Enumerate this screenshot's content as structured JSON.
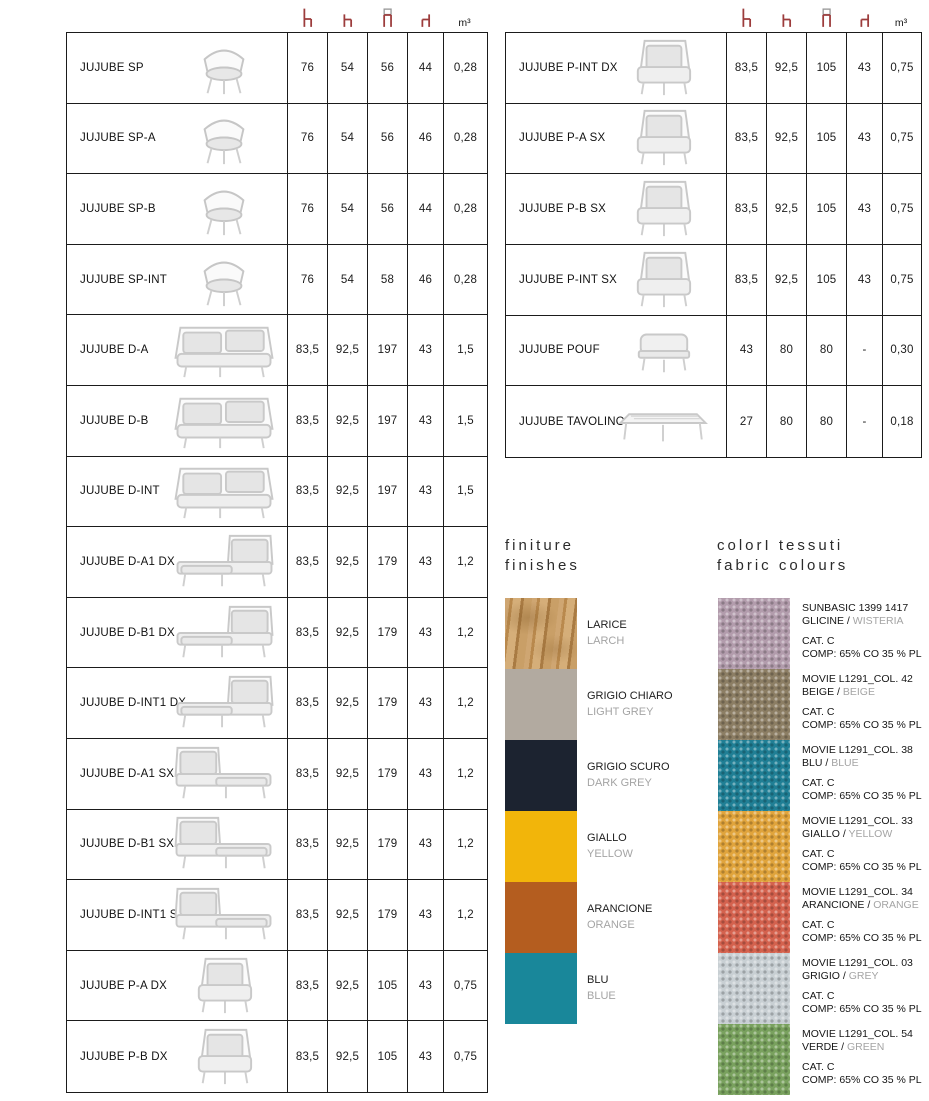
{
  "dim_header": {
    "icons": [
      {
        "name": "total-height-icon"
      },
      {
        "name": "depth-icon"
      },
      {
        "name": "width-icon"
      },
      {
        "name": "seat-height-icon"
      }
    ],
    "volume_label": "m³"
  },
  "left_table": {
    "rows": [
      {
        "name": "JUJUBE SP",
        "image": "chair",
        "values": [
          "76",
          "54",
          "56",
          "44",
          "0,28"
        ]
      },
      {
        "name": "JUJUBE SP-A",
        "image": "chair",
        "values": [
          "76",
          "54",
          "56",
          "46",
          "0,28"
        ]
      },
      {
        "name": "JUJUBE SP-B",
        "image": "chair",
        "values": [
          "76",
          "54",
          "56",
          "44",
          "0,28"
        ]
      },
      {
        "name": "JUJUBE SP-INT",
        "image": "chair",
        "values": [
          "76",
          "54",
          "58",
          "46",
          "0,28"
        ]
      },
      {
        "name": "JUJUBE D-A",
        "image": "sofa",
        "values": [
          "83,5",
          "92,5",
          "197",
          "43",
          "1,5"
        ]
      },
      {
        "name": "JUJUBE D-B",
        "image": "sofa",
        "values": [
          "83,5",
          "92,5",
          "197",
          "43",
          "1,5"
        ]
      },
      {
        "name": "JUJUBE D-INT",
        "image": "sofa",
        "values": [
          "83,5",
          "92,5",
          "197",
          "43",
          "1,5"
        ]
      },
      {
        "name": "JUJUBE D-A1 DX",
        "image": "chaise-dx",
        "values": [
          "83,5",
          "92,5",
          "179",
          "43",
          "1,2"
        ]
      },
      {
        "name": "JUJUBE D-B1 DX",
        "image": "chaise-dx",
        "values": [
          "83,5",
          "92,5",
          "179",
          "43",
          "1,2"
        ]
      },
      {
        "name": "JUJUBE D-INT1 DX",
        "image": "chaise-dx",
        "values": [
          "83,5",
          "92,5",
          "179",
          "43",
          "1,2"
        ]
      },
      {
        "name": "JUJUBE D-A1 SX",
        "image": "chaise-sx",
        "values": [
          "83,5",
          "92,5",
          "179",
          "43",
          "1,2"
        ]
      },
      {
        "name": "JUJUBE D-B1 SX",
        "image": "chaise-sx",
        "values": [
          "83,5",
          "92,5",
          "179",
          "43",
          "1,2"
        ]
      },
      {
        "name": "JUJUBE D-INT1 SX",
        "image": "chaise-sx",
        "values": [
          "83,5",
          "92,5",
          "179",
          "43",
          "1,2"
        ]
      },
      {
        "name": "JUJUBE P-A DX",
        "image": "armchair",
        "values": [
          "83,5",
          "92,5",
          "105",
          "43",
          "0,75"
        ]
      },
      {
        "name": "JUJUBE P-B DX",
        "image": "armchair",
        "values": [
          "83,5",
          "92,5",
          "105",
          "43",
          "0,75"
        ]
      }
    ]
  },
  "right_table": {
    "rows": [
      {
        "name": "JUJUBE P-INT DX",
        "image": "armchair",
        "values": [
          "83,5",
          "92,5",
          "105",
          "43",
          "0,75"
        ]
      },
      {
        "name": "JUJUBE P-A SX",
        "image": "armchair",
        "values": [
          "83,5",
          "92,5",
          "105",
          "43",
          "0,75"
        ]
      },
      {
        "name": "JUJUBE P-B SX",
        "image": "armchair",
        "values": [
          "83,5",
          "92,5",
          "105",
          "43",
          "0,75"
        ]
      },
      {
        "name": "JUJUBE P-INT SX",
        "image": "armchair",
        "values": [
          "83,5",
          "92,5",
          "105",
          "43",
          "0,75"
        ]
      },
      {
        "name": "JUJUBE POUF",
        "image": "pouf",
        "values": [
          "43",
          "80",
          "80",
          "-",
          "0,30"
        ]
      },
      {
        "name": "JUJUBE TAVOLINO",
        "image": "table",
        "values": [
          "27",
          "80",
          "80",
          "-",
          "0,18"
        ]
      }
    ]
  },
  "finishes": {
    "title_line1": "finiture",
    "title_line2": "finishes",
    "items": [
      {
        "name_it": "LARICE",
        "name_en": "LARCH",
        "swatch": "wood",
        "color": "#c79e66"
      },
      {
        "name_it": "GRIGIO CHIARO",
        "name_en": "LIGHT GREY",
        "swatch": "flat",
        "color": "#b2aaa0"
      },
      {
        "name_it": "GRIGIO SCURO",
        "name_en": "DARK GREY",
        "swatch": "flat",
        "color": "#1c2330"
      },
      {
        "name_it": "GIALLO",
        "name_en": "YELLOW",
        "swatch": "flat",
        "color": "#f2b50a"
      },
      {
        "name_it": "ARANCIONE",
        "name_en": "ORANGE",
        "swatch": "flat",
        "color": "#b45d1f"
      },
      {
        "name_it": "BLU",
        "name_en": "BLUE",
        "swatch": "flat",
        "color": "#19879a"
      }
    ]
  },
  "fabrics": {
    "title_line1": "colorI tessuti",
    "title_line2": "fabric colours",
    "items": [
      {
        "code": "SUNBASIC 1399 1417",
        "color_it": "GLICINE",
        "separator": " / ",
        "color_en": "WISTERIA",
        "cat": "CAT. C",
        "comp": "COMP: 65% CO 35 % PL",
        "color": "#b29cac"
      },
      {
        "code": "MOVIE L1291_COL. 42",
        "color_it": "BEIGE",
        "separator": " / ",
        "color_en": "BEIGE",
        "cat": "CAT. C",
        "comp": "COMP: 65% CO 35 % PL",
        "color": "#8c7e64"
      },
      {
        "code": "MOVIE L1291_COL. 38",
        "color_it": "BLU",
        "separator": " / ",
        "color_en": "BLUE",
        "cat": "CAT. C",
        "comp": "COMP: 65% CO 35 % PL",
        "color": "#207f95"
      },
      {
        "code": "MOVIE L1291_COL. 33",
        "color_it": "GIALLO",
        "separator": " / ",
        "color_en": "YELLOW",
        "cat": "CAT. C",
        "comp": "COMP: 65% CO 35 % PL",
        "color": "#e0a43c"
      },
      {
        "code": "MOVIE L1291_COL. 34",
        "color_it": "ARANCIONE",
        "separator": " / ",
        "color_en": "ORANGE",
        "cat": "CAT. C",
        "comp": "COMP: 65% CO 35 % PL",
        "color": "#d4624e"
      },
      {
        "code": "MOVIE L1291_COL. 03",
        "color_it": "GRIGIO",
        "separator": " / ",
        "color_en": "GREY",
        "cat": "CAT. C",
        "comp": "COMP: 65% CO 35 % PL",
        "color": "#c8cfd3"
      },
      {
        "code": "MOVIE L1291_COL. 54",
        "color_it": "VERDE",
        "separator": " / ",
        "color_en": "GREEN",
        "cat": "CAT. C",
        "comp": "COMP: 65% CO 35 % PL",
        "color": "#79a15e"
      }
    ]
  }
}
